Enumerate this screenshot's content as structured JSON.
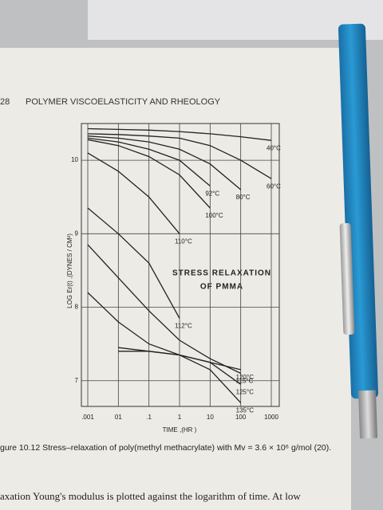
{
  "header": {
    "page_number": "28",
    "running_title": "POLYMER VISCOELASTICITY AND RHEOLOGY"
  },
  "chart_data": {
    "type": "line",
    "xlabel": "TIME ,(HR )",
    "ylabel": "LOG Er(t) ,(DYNES / CM²)",
    "annotations": [
      "STRESS RELAXATION",
      "OF PMMA"
    ],
    "log_x": true,
    "grid": true,
    "color": "#222222",
    "x": [
      0.001,
      0.01,
      0.1,
      1,
      10,
      100,
      1000
    ],
    "xlim": [
      0.001,
      1000
    ],
    "xticks": [
      {
        "value": 0.001,
        "label": ".001"
      },
      {
        "value": 0.01,
        "label": "01"
      },
      {
        "value": 0.1,
        "label": ".1"
      },
      1,
      10,
      100,
      1000
    ],
    "ylim": [
      6.65,
      10.5
    ],
    "yticks": [
      7,
      8,
      9,
      10
    ],
    "series": [
      {
        "name": "40°C",
        "values": [
          10.43,
          10.42,
          10.41,
          10.39,
          10.36,
          10.32,
          10.27
        ]
      },
      {
        "name": "60°C",
        "values": [
          10.36,
          10.35,
          10.33,
          10.3,
          10.2,
          10.0,
          9.75
        ]
      },
      {
        "name": "80°C",
        "values": [
          10.33,
          10.3,
          10.25,
          10.15,
          9.95,
          9.6,
          null
        ]
      },
      {
        "name": "92°C",
        "values": [
          10.3,
          10.25,
          10.15,
          10.0,
          9.65,
          null,
          null
        ]
      },
      {
        "name": "100°C",
        "values": [
          10.28,
          10.2,
          10.05,
          9.8,
          9.35,
          null,
          null
        ]
      },
      {
        "name": "110°C",
        "values": [
          10.1,
          9.85,
          9.5,
          9.0,
          null,
          null,
          null
        ]
      },
      {
        "name": "112°C",
        "values": [
          9.35,
          9.0,
          8.6,
          7.85,
          null,
          null,
          null
        ]
      },
      {
        "name": "115°C",
        "values": [
          8.85,
          8.4,
          7.95,
          7.55,
          7.3,
          7.1,
          null
        ]
      },
      {
        "name": "120°C",
        "values": [
          8.2,
          7.8,
          7.5,
          7.35,
          7.25,
          7.15,
          null
        ]
      },
      {
        "name": "125°C",
        "values": [
          null,
          7.4,
          7.4,
          7.35,
          7.25,
          6.95,
          null
        ]
      },
      {
        "name": "135°C",
        "values": [
          null,
          7.45,
          7.4,
          7.35,
          7.15,
          6.7,
          null
        ]
      }
    ]
  },
  "caption": "gure 10.12  Stress–relaxation of poly(methyl methacrylate) with Mv = 3.6 × 10⁶ g/mol (20).",
  "body_text": "axation Young's modulus is plotted against the logarithm of time. At low"
}
